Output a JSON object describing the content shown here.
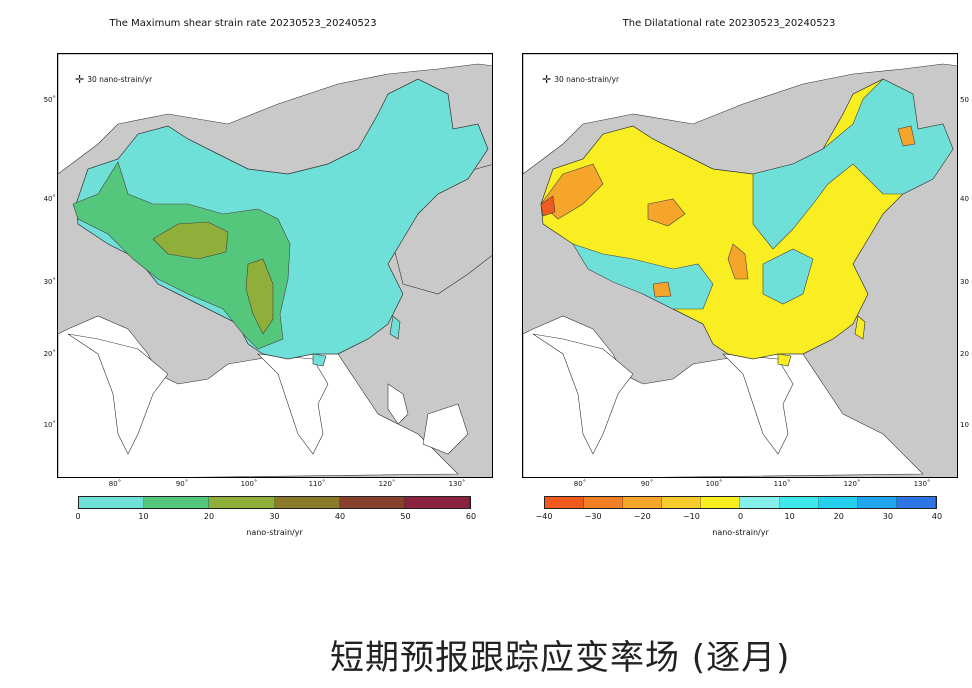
{
  "left_map": {
    "title": "The Maximum shear strain rate 20230523_20240523",
    "scale_label": "30 nano-strain/yr",
    "lon_ticks": [
      "80˚",
      "90˚",
      "100˚",
      "110˚",
      "120˚",
      "130˚"
    ],
    "lat_ticks": [
      "50˚",
      "40˚",
      "30˚",
      "20˚",
      "10˚"
    ],
    "colorbar": {
      "colors": [
        "#6fe0d8",
        "#55c77c",
        "#8fae3a",
        "#8a7a2a",
        "#86402b",
        "#8a2240"
      ],
      "ticks": [
        "0",
        "10",
        "20",
        "30",
        "40",
        "50",
        "60"
      ],
      "unit": "nano-strain/yr"
    }
  },
  "right_map": {
    "title": "The Dilatational rate 20230523_20240523",
    "scale_label": "30 nano-strain/yr",
    "lon_ticks": [
      "80˚",
      "90˚",
      "100˚",
      "110˚",
      "120˚",
      "130˚"
    ],
    "lat_ticks": [
      "50",
      "40",
      "30",
      "20",
      "10"
    ],
    "colorbar": {
      "colors": [
        "#f05a1e",
        "#f27f24",
        "#f4a52a",
        "#f6cc2c",
        "#f8ee22",
        "#86f0ec",
        "#3fe8ea",
        "#25d0ee",
        "#1fa6ee",
        "#2f74e4"
      ],
      "ticks": [
        "−40",
        "−30",
        "−20",
        "−10",
        "0",
        "10",
        "20",
        "30",
        "40"
      ],
      "unit": "nano-strain/yr"
    }
  },
  "caption": "短期预报跟踪应变率场 (逐月)"
}
